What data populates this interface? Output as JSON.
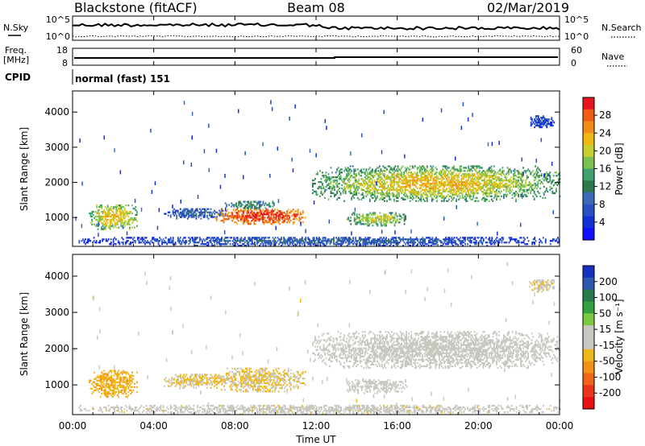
{
  "header": {
    "station": "Blackstone (fitACF)",
    "beam": "Beam 08",
    "date": "02/Mar/2019"
  },
  "summary_panels": {
    "nsky": {
      "label": "N.Sky",
      "ticks": [
        "10^5",
        "10^0"
      ]
    },
    "nsearch": {
      "label": "N.Search",
      "ticks": [
        "10^5",
        "10^0"
      ]
    },
    "freq": {
      "label": "Freq.",
      "unit": "[MHz]",
      "ticks": [
        "18",
        "8"
      ]
    },
    "nave": {
      "label": "Nave",
      "ticks": [
        "60",
        "0"
      ]
    },
    "cpid": {
      "label": "CPID",
      "value": "normal (fast) 151"
    }
  },
  "axes": {
    "xlabel": "Time UT",
    "ylabel": "Slant Range [km]",
    "xticks": [
      "00:00",
      "04:00",
      "08:00",
      "12:00",
      "16:00",
      "20:00",
      "00:00"
    ],
    "yticks": [
      "1000",
      "2000",
      "3000",
      "4000"
    ]
  },
  "colorbars": {
    "power": {
      "label": "Power [dB]",
      "ticks": [
        "28",
        "24",
        "20",
        "16",
        "12",
        "8",
        "4"
      ],
      "colors": [
        "#e8141c",
        "#f25c18",
        "#f48c1a",
        "#f0b814",
        "#c8d030",
        "#7cc050",
        "#40a070",
        "#2e7a50",
        "#3c6ab8",
        "#2850c0",
        "#1030d8",
        "#1010ff"
      ]
    },
    "velocity": {
      "label": "Velocity [m s⁻¹]",
      "ticks": [
        "200",
        "100",
        "50",
        "15",
        "-15",
        "-50",
        "-100",
        "-200"
      ],
      "colors": [
        "#1830c0",
        "#2e58b0",
        "#2a7a50",
        "#34a040",
        "#7cc840",
        "#c8c8c0",
        "#c8c8c0",
        "#f0b818",
        "#f49018",
        "#f26418",
        "#ec3418",
        "#e81010"
      ]
    }
  },
  "chart_data": [
    {
      "type": "heatmap",
      "name": "power",
      "xlim": [
        0,
        24
      ],
      "ylim": [
        180,
        4600
      ],
      "regions": [
        {
          "t": [
            0.8,
            3.2
          ],
          "r": [
            650,
            1350
          ],
          "v": 16,
          "core": 22
        },
        {
          "t": [
            4.5,
            7.5
          ],
          "r": [
            950,
            1250
          ],
          "v": 8,
          "core": 10
        },
        {
          "t": [
            7.0,
            11.5
          ],
          "r": [
            800,
            1250
          ],
          "v": 24,
          "core": 28
        },
        {
          "t": [
            7.5,
            10.0
          ],
          "r": [
            1250,
            1450
          ],
          "v": 12,
          "core": 14
        },
        {
          "t": [
            11.8,
            24.0
          ],
          "r": [
            1450,
            2450
          ],
          "v": 14,
          "core": 22
        },
        {
          "t": [
            13.5,
            16.5
          ],
          "r": [
            750,
            1150
          ],
          "v": 14,
          "core": 20
        },
        {
          "t": [
            0.3,
            24.0
          ],
          "r": [
            180,
            450
          ],
          "v": 6,
          "core": 10
        },
        {
          "t": [
            22.5,
            23.8
          ],
          "r": [
            3550,
            3900
          ],
          "v": 6,
          "core": 8
        }
      ]
    },
    {
      "type": "heatmap",
      "name": "velocity",
      "xlim": [
        0,
        24
      ],
      "ylim": [
        180,
        4600
      ],
      "regions": [
        {
          "t": [
            0.8,
            3.2
          ],
          "r": [
            650,
            1400
          ],
          "v": -70
        },
        {
          "t": [
            4.5,
            7.5
          ],
          "r": [
            900,
            1300
          ],
          "v": -40
        },
        {
          "t": [
            7.0,
            11.5
          ],
          "r": [
            800,
            1450
          ],
          "v": -40
        },
        {
          "t": [
            11.8,
            24.0
          ],
          "r": [
            1450,
            2450
          ],
          "v": 0
        },
        {
          "t": [
            13.5,
            16.5
          ],
          "r": [
            750,
            1150
          ],
          "v": 0
        },
        {
          "t": [
            0.3,
            24.0
          ],
          "r": [
            180,
            450
          ],
          "v": -20
        },
        {
          "t": [
            22.5,
            23.8
          ],
          "r": [
            3550,
            3900
          ],
          "v": -30
        }
      ]
    }
  ]
}
